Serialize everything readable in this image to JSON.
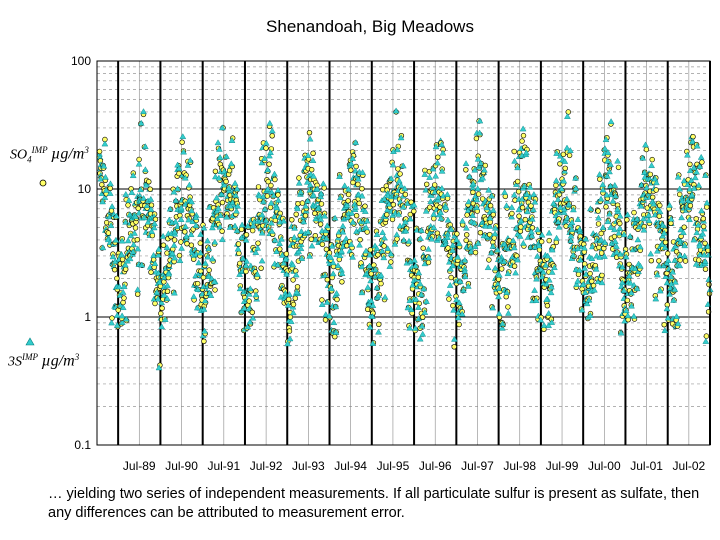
{
  "chart_data": {
    "type": "scatter",
    "title": "Shenandoah, Big Meadows",
    "yscale": "log",
    "ylim": [
      0.1,
      100
    ],
    "yticks": [
      "0.1",
      "1",
      "10",
      "100"
    ],
    "xticks": [
      "Jul-89",
      "Jul-90",
      "Jul-91",
      "Jul-92",
      "Jul-93",
      "Jul-94",
      "Jul-95",
      "Jul-96",
      "Jul-97",
      "Jul-98",
      "Jul-99",
      "Jul-00",
      "Jul-01",
      "Jul-02"
    ],
    "x_range_years": [
      1988.5,
      2003.0
    ],
    "grid": true,
    "series": [
      {
        "name": "SO4 IMP µg/m3",
        "label_main": "SO",
        "label_sub": "4",
        "label_sup": "IMP",
        "label_unit": "µg/m",
        "label_unit_sup": "3",
        "marker": "circle",
        "color": "#ffff66",
        "edge": "#000000"
      },
      {
        "name": "3S IMP µg/m3",
        "label_main": "3S",
        "label_sub": "",
        "label_sup": "IMP",
        "label_unit": "µg/m",
        "label_unit_sup": "3",
        "marker": "triangle",
        "color": "#33cccc",
        "edge": "#008080"
      }
    ],
    "seasonal_pattern": {
      "summer_peak": 10,
      "winter_low": 2,
      "spread_log10": 0.35
    }
  },
  "footnote": "… yielding two series of independent measurements. If all particulate sulfur is present as sulfate, then any differences can be attributed to measurement error."
}
